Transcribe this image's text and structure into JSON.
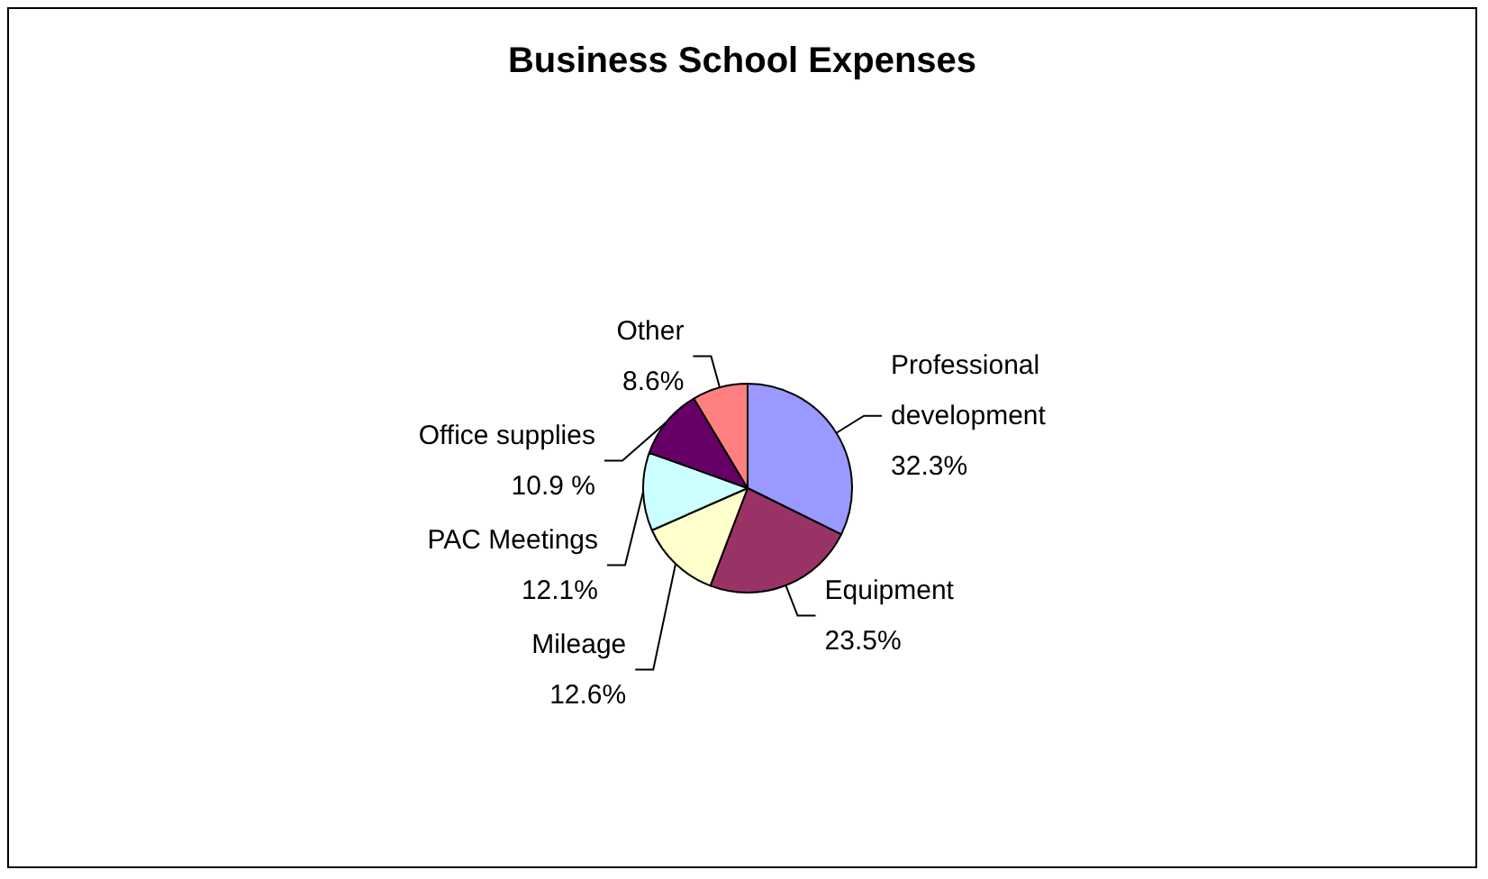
{
  "chart_data": {
    "type": "pie",
    "title": "Business School Expenses",
    "categories": [
      "Professional development",
      "Equipment",
      "Mileage",
      "PAC Meetings",
      "Office supplies",
      "Other"
    ],
    "values": [
      32.3,
      23.5,
      12.6,
      12.1,
      10.9,
      8.6
    ],
    "value_labels": [
      "32.3%",
      "23.5%",
      "12.6%",
      "12.1%",
      "10.9 %",
      "8.6%"
    ],
    "colors": [
      "#9999ff",
      "#993366",
      "#ffffcc",
      "#ccffff",
      "#660066",
      "#ff8080"
    ],
    "legend": false
  }
}
